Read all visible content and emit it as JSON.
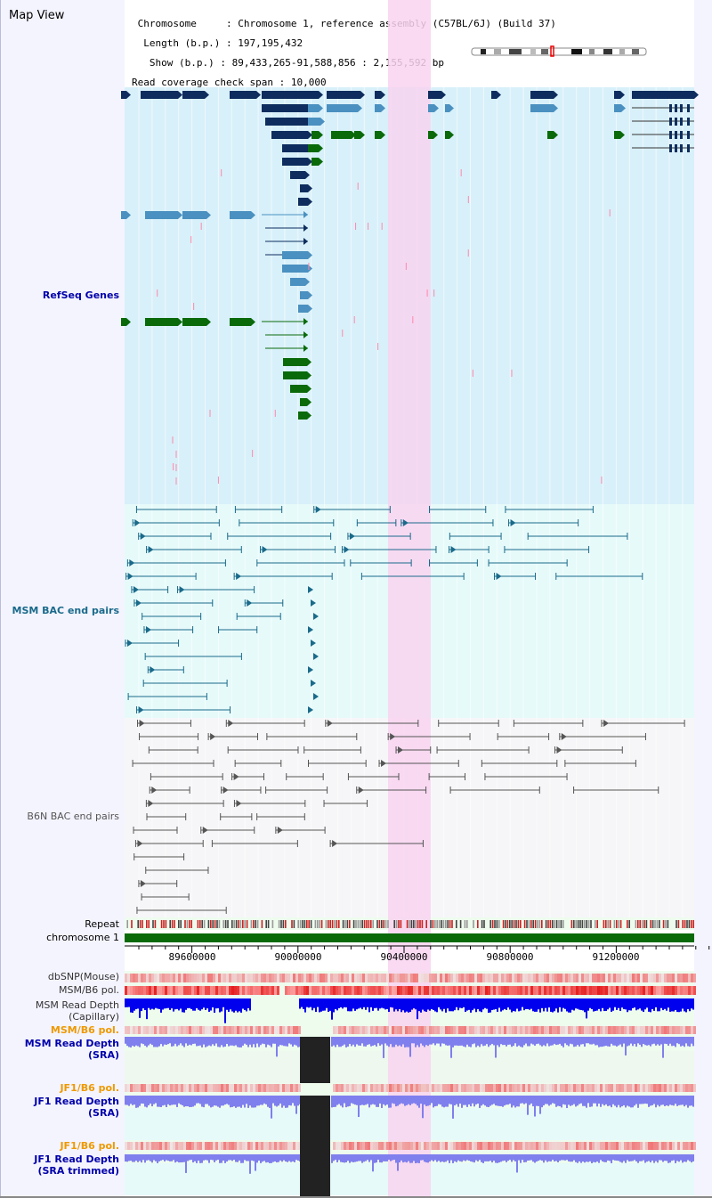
{
  "view": {
    "title": "Map View"
  },
  "info": {
    "chromosome_key": "Chromosome",
    "chromosome_value": "Chromosome 1, reference assembly (C57BL/6J) (Build 37)",
    "length_key": "Length (b.p.)",
    "length_value": "197,195,432",
    "show_key": "Show (b.p.)",
    "show_value": "89,433,265-91,588,856 : 2,155,592 bp",
    "coverage_key": "Read coverage check span",
    "coverage_value": "10,000"
  },
  "tracks": {
    "refseq": "RefSeq Genes",
    "msm_bac": "MSM BAC end pairs",
    "b6n_bac": "B6N BAC end pairs",
    "repeat": "Repeat",
    "chromosome": "chromosome 1",
    "dbsnp": "dbSNP(Mouse)",
    "msm_b6_pol": "MSM/B6 pol.",
    "msm_depth_cap_1": "MSM Read Depth",
    "msm_depth_cap_2": "(Capillary)",
    "msm_b6_pol_2": "MSM/B6 pol.",
    "msm_depth_sra_1": "MSM Read Depth",
    "msm_depth_sra_2": "(SRA)",
    "jf1_b6_pol": "JF1/B6 pol.",
    "jf1_depth_sra_1": "JF1 Read Depth",
    "jf1_depth_sra_2": "(SRA)",
    "jf1_b6_pol_2": "JF1/B6 pol.",
    "jf1_depth_trim_1": "JF1 Read Depth",
    "jf1_depth_trim_2": "(SRA trimmed)"
  },
  "axis": {
    "ticks": [
      "89600000",
      "90000000",
      "90400000",
      "90800000",
      "91200000"
    ]
  },
  "colors": {
    "refseq_bg": "#d8f0fa",
    "msm_bac_bg": "#e6fafa",
    "b6n_bac_bg": "#f6f6f8",
    "highlight": "#f8d4f0",
    "gene_dark": "#0e2d5e",
    "gene_light": "#4a90c0",
    "gene_green": "#0a6a0a",
    "bac_msm": "#1a6a8a",
    "bac_b6n": "#555555",
    "chromosome": "#0a6a0a",
    "depth_dark": "#0000ee",
    "depth_light": "#7f7fee",
    "label_blue": "#0000aa",
    "label_teal": "#1a6a8a",
    "label_orange": "#ee9900",
    "label_gray": "#555555"
  }
}
